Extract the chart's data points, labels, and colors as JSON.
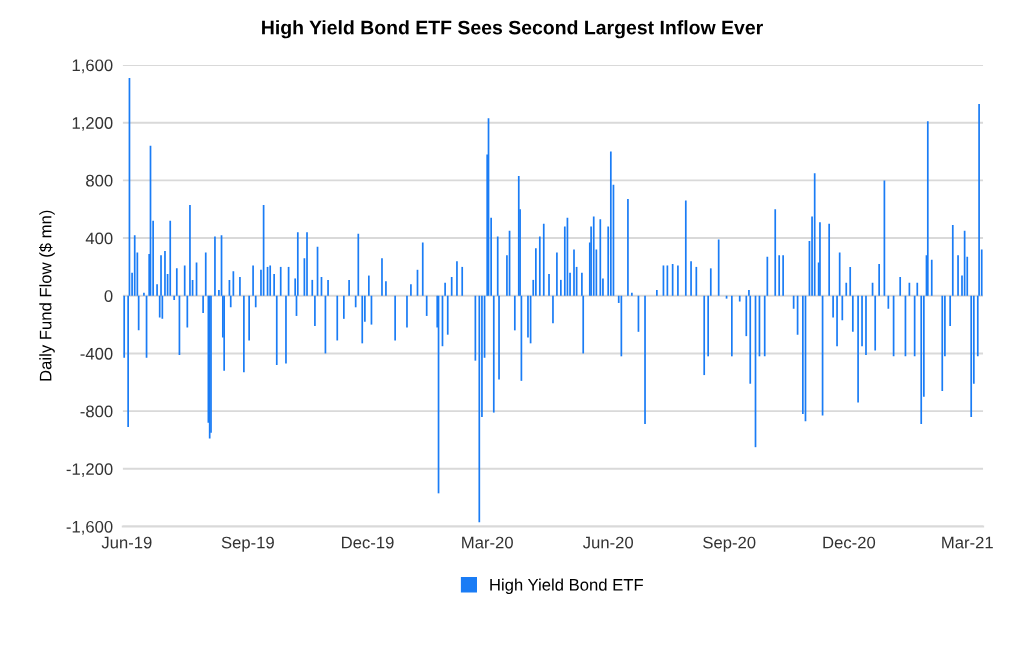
{
  "chart_data": {
    "type": "bar",
    "title": "High Yield Bond ETF Sees Second Largest Inflow Ever",
    "ylabel": "Daily Fund Flow ($ mn)",
    "x": [
      "2019-05-30",
      "2019-06-02",
      "2019-06-03",
      "2019-06-05",
      "2019-06-07",
      "2019-06-09",
      "2019-06-10",
      "2019-06-14",
      "2019-06-16",
      "2019-06-18",
      "2019-06-19",
      "2019-06-21",
      "2019-06-24",
      "2019-06-26",
      "2019-06-27",
      "2019-06-28",
      "2019-06-30",
      "2019-07-02",
      "2019-07-04",
      "2019-07-07",
      "2019-07-09",
      "2019-07-11",
      "2019-07-15",
      "2019-07-17",
      "2019-07-19",
      "2019-07-21",
      "2019-07-24",
      "2019-07-29",
      "2019-07-31",
      "2019-08-02",
      "2019-08-03",
      "2019-08-04",
      "2019-08-07",
      "2019-08-10",
      "2019-08-12",
      "2019-08-13",
      "2019-08-14",
      "2019-08-18",
      "2019-08-19",
      "2019-08-21",
      "2019-08-26",
      "2019-08-29",
      "2019-09-02",
      "2019-09-05",
      "2019-09-07",
      "2019-09-11",
      "2019-09-13",
      "2019-09-16",
      "2019-09-18",
      "2019-09-21",
      "2019-09-23",
      "2019-09-26",
      "2019-09-30",
      "2019-10-02",
      "2019-10-07",
      "2019-10-08",
      "2019-10-09",
      "2019-10-14",
      "2019-10-16",
      "2019-10-20",
      "2019-10-22",
      "2019-10-24",
      "2019-10-27",
      "2019-10-30",
      "2019-11-01",
      "2019-11-08",
      "2019-11-13",
      "2019-11-17",
      "2019-11-22",
      "2019-11-24",
      "2019-11-27",
      "2019-11-29",
      "2019-12-02",
      "2019-12-04",
      "2019-12-12",
      "2019-12-15",
      "2019-12-22",
      "2019-12-31",
      "2020-01-03",
      "2020-01-08",
      "2020-01-12",
      "2020-01-15",
      "2020-01-23",
      "2020-01-24",
      "2020-01-27",
      "2020-01-29",
      "2020-01-31",
      "2020-02-03",
      "2020-02-07",
      "2020-02-11",
      "2020-02-21",
      "2020-02-24",
      "2020-02-26",
      "2020-02-28",
      "2020-03-01",
      "2020-03-02",
      "2020-03-04",
      "2020-03-06",
      "2020-03-09",
      "2020-03-10",
      "2020-03-16",
      "2020-03-18",
      "2020-03-22",
      "2020-03-25",
      "2020-03-26",
      "2020-03-27",
      "2020-04-01",
      "2020-04-03",
      "2020-04-05",
      "2020-04-07",
      "2020-04-10",
      "2020-04-13",
      "2020-04-17",
      "2020-04-20",
      "2020-04-23",
      "2020-04-26",
      "2020-04-29",
      "2020-05-01",
      "2020-05-03",
      "2020-05-06",
      "2020-05-08",
      "2020-05-12",
      "2020-05-13",
      "2020-05-18",
      "2020-05-19",
      "2020-05-21",
      "2020-05-23",
      "2020-05-26",
      "2020-05-28",
      "2020-06-01",
      "2020-06-03",
      "2020-06-05",
      "2020-06-09",
      "2020-06-11",
      "2020-06-16",
      "2020-06-19",
      "2020-06-24",
      "2020-06-29",
      "2020-07-08",
      "2020-07-13",
      "2020-07-16",
      "2020-07-20",
      "2020-07-24",
      "2020-07-30",
      "2020-08-03",
      "2020-08-07",
      "2020-08-13",
      "2020-08-16",
      "2020-08-18",
      "2020-08-24",
      "2020-08-30",
      "2020-09-03",
      "2020-09-09",
      "2020-09-14",
      "2020-09-16",
      "2020-09-17",
      "2020-09-21",
      "2020-09-24",
      "2020-09-28",
      "2020-09-30",
      "2020-10-06",
      "2020-10-09",
      "2020-10-12",
      "2020-10-20",
      "2020-10-23",
      "2020-10-27",
      "2020-10-29",
      "2020-11-01",
      "2020-11-03",
      "2020-11-05",
      "2020-11-08",
      "2020-11-09",
      "2020-11-11",
      "2020-11-16",
      "2020-11-19",
      "2020-11-22",
      "2020-11-24",
      "2020-11-26",
      "2020-11-29",
      "2020-12-02",
      "2020-12-04",
      "2020-12-08",
      "2020-12-11",
      "2020-12-14",
      "2020-12-19",
      "2020-12-21",
      "2020-12-24",
      "2020-12-28",
      "2020-12-31",
      "2021-01-04",
      "2021-01-09",
      "2021-01-13",
      "2021-01-16",
      "2021-01-20",
      "2021-01-22",
      "2021-01-25",
      "2021-01-27",
      "2021-01-29",
      "2021-01-30",
      "2021-02-02",
      "2021-02-10",
      "2021-02-12",
      "2021-02-16",
      "2021-02-18",
      "2021-02-22",
      "2021-02-25",
      "2021-02-27",
      "2021-03-01",
      "2021-03-04",
      "2021-03-06",
      "2021-03-09",
      "2021-03-10",
      "2021-03-12"
    ],
    "series": [
      {
        "name": "High Yield Bond ETF",
        "color": "#1a7cf5",
        "values": [
          -430,
          -910,
          1510,
          160,
          420,
          300,
          -240,
          20,
          -430,
          290,
          1040,
          520,
          80,
          -150,
          280,
          -160,
          310,
          150,
          520,
          -30,
          190,
          -410,
          210,
          -220,
          630,
          110,
          230,
          -120,
          300,
          -880,
          -990,
          -950,
          410,
          40,
          420,
          -290,
          -520,
          110,
          -80,
          170,
          130,
          -530,
          -310,
          210,
          -80,
          180,
          630,
          200,
          210,
          150,
          -480,
          200,
          -470,
          200,
          120,
          -140,
          440,
          260,
          440,
          110,
          -210,
          340,
          130,
          -400,
          110,
          -310,
          -160,
          110,
          -80,
          430,
          -330,
          -180,
          140,
          -200,
          260,
          100,
          -310,
          -220,
          80,
          180,
          370,
          -140,
          -220,
          -1370,
          -350,
          90,
          -270,
          130,
          240,
          200,
          -450,
          -1570,
          -840,
          -430,
          980,
          1230,
          540,
          -810,
          410,
          -580,
          280,
          450,
          -240,
          830,
          600,
          -590,
          -290,
          -330,
          110,
          330,
          410,
          500,
          150,
          -190,
          300,
          110,
          480,
          540,
          160,
          320,
          200,
          160,
          -400,
          370,
          480,
          550,
          320,
          530,
          120,
          480,
          1000,
          770,
          -50,
          -420,
          670,
          20,
          -250,
          -890,
          40,
          210,
          210,
          220,
          210,
          660,
          240,
          200,
          -550,
          -420,
          190,
          390,
          -20,
          -420,
          -40,
          -280,
          40,
          -610,
          -1050,
          -420,
          -420,
          270,
          600,
          280,
          280,
          -90,
          -270,
          -820,
          -870,
          380,
          550,
          850,
          230,
          510,
          -830,
          500,
          -150,
          -350,
          300,
          -170,
          90,
          200,
          -250,
          -740,
          -350,
          -410,
          90,
          -380,
          220,
          800,
          -90,
          -420,
          130,
          -420,
          90,
          -420,
          90,
          -890,
          -700,
          280,
          1210,
          250,
          -660,
          -420,
          -210,
          490,
          280,
          140,
          450,
          270,
          -840,
          -610,
          -420,
          1330,
          320
        ]
      }
    ],
    "xlim": [
      "2019-05-29",
      "2021-03-13"
    ],
    "xticks": [
      {
        "value": "2019-06-01",
        "label": "Jun-19"
      },
      {
        "value": "2019-09-01",
        "label": "Sep-19"
      },
      {
        "value": "2019-12-01",
        "label": "Dec-19"
      },
      {
        "value": "2020-03-01",
        "label": "Mar-20"
      },
      {
        "value": "2020-06-01",
        "label": "Jun-20"
      },
      {
        "value": "2020-09-01",
        "label": "Sep-20"
      },
      {
        "value": "2020-12-01",
        "label": "Dec-20"
      },
      {
        "value": "2021-03-01",
        "label": "Mar-21"
      }
    ],
    "ylim": [
      -1600,
      1600
    ],
    "yticks": [
      {
        "value": -1600,
        "label": "-1,600"
      },
      {
        "value": -1200,
        "label": "-1,200"
      },
      {
        "value": -800,
        "label": "-800"
      },
      {
        "value": -400,
        "label": "-400"
      },
      0,
      400,
      800,
      {
        "value": 1200,
        "label": "1,200"
      },
      {
        "value": 1600,
        "label": "1,600"
      }
    ],
    "grid": "y",
    "legend": "bottom"
  }
}
